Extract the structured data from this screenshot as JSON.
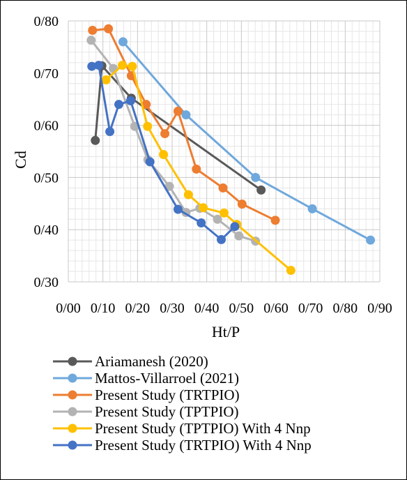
{
  "chart_data": {
    "type": "line",
    "xlabel": "Ht/P",
    "ylabel": "Cd",
    "xlim": [
      0.0,
      0.9
    ],
    "ylim": [
      0.3,
      0.8
    ],
    "x_ticks": [
      "0/00",
      "0/10",
      "0/20",
      "0/30",
      "0/40",
      "0/50",
      "0/60",
      "0/70",
      "0/80",
      "0/90"
    ],
    "y_ticks": [
      "0/30",
      "0/40",
      "0/50",
      "0/60",
      "0/70",
      "0/80"
    ],
    "grid": true,
    "minor_grid": true,
    "legend_position": "bottom",
    "series": [
      {
        "name": "Ariamanesh (2020)",
        "color": "#595959",
        "points": [
          [
            0.078,
            0.571
          ],
          [
            0.097,
            0.714
          ],
          [
            0.182,
            0.652
          ],
          [
            0.557,
            0.476
          ]
        ]
      },
      {
        "name": "Mattos-Villarroel (2021)",
        "color": "#6fa8dc",
        "points": [
          [
            0.158,
            0.76
          ],
          [
            0.34,
            0.62
          ],
          [
            0.541,
            0.5
          ],
          [
            0.705,
            0.44
          ],
          [
            0.873,
            0.38
          ]
        ]
      },
      {
        "name": "Present Study (TRTPIO)",
        "color": "#ed7d31",
        "points": [
          [
            0.07,
            0.782
          ],
          [
            0.116,
            0.785
          ],
          [
            0.182,
            0.695
          ],
          [
            0.225,
            0.64
          ],
          [
            0.279,
            0.584
          ],
          [
            0.317,
            0.627
          ],
          [
            0.37,
            0.516
          ],
          [
            0.447,
            0.48
          ],
          [
            0.502,
            0.449
          ],
          [
            0.598,
            0.418
          ]
        ]
      },
      {
        "name": "Present Study (TPTPIO)",
        "color": "#b3b3b3",
        "points": [
          [
            0.066,
            0.763
          ],
          [
            0.13,
            0.709
          ],
          [
            0.192,
            0.598
          ],
          [
            0.23,
            0.534
          ],
          [
            0.292,
            0.483
          ],
          [
            0.34,
            0.433
          ],
          [
            0.38,
            0.441
          ],
          [
            0.431,
            0.42
          ],
          [
            0.493,
            0.388
          ],
          [
            0.541,
            0.378
          ]
        ]
      },
      {
        "name": "Present Study (TPTPIO) With 4 Nnp",
        "color": "#ffc000",
        "points": [
          [
            0.109,
            0.687
          ],
          [
            0.156,
            0.715
          ],
          [
            0.185,
            0.713
          ],
          [
            0.229,
            0.598
          ],
          [
            0.275,
            0.544
          ],
          [
            0.347,
            0.467
          ],
          [
            0.39,
            0.442
          ],
          [
            0.45,
            0.432
          ],
          [
            0.487,
            0.41
          ],
          [
            0.643,
            0.322
          ]
        ]
      },
      {
        "name": "Present Study (TRTPIO) With 4 Nnp",
        "color": "#4472c4",
        "points": [
          [
            0.068,
            0.713
          ],
          [
            0.088,
            0.715
          ],
          [
            0.12,
            0.588
          ],
          [
            0.146,
            0.64
          ],
          [
            0.18,
            0.647
          ],
          [
            0.236,
            0.53
          ],
          [
            0.317,
            0.439
          ],
          [
            0.384,
            0.413
          ],
          [
            0.442,
            0.381
          ],
          [
            0.481,
            0.406
          ]
        ]
      }
    ]
  }
}
